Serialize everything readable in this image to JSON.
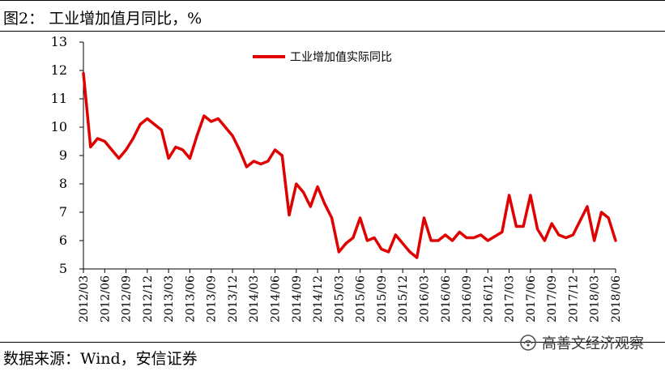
{
  "header": {
    "title": "图2：  工业增加值月同比，%"
  },
  "footer": {
    "source": "数据来源：Wind，安信证券"
  },
  "watermark": {
    "text": "高善文经济观察",
    "icon": "wechat-channel-icon"
  },
  "colors": {
    "series": "#e00000",
    "axis": "#000000"
  },
  "chart_data": {
    "type": "line",
    "title": "",
    "xlabel": "",
    "ylabel": "",
    "ylim": [
      5,
      13
    ],
    "yticks": [
      5,
      6,
      7,
      8,
      9,
      10,
      11,
      12,
      13
    ],
    "grid": false,
    "legend_position": "top-center",
    "x": [
      "2012/03",
      "2012/04",
      "2012/05",
      "2012/06",
      "2012/07",
      "2012/08",
      "2012/09",
      "2012/10",
      "2012/11",
      "2012/12",
      "2013/01",
      "2013/02",
      "2013/03",
      "2013/04",
      "2013/05",
      "2013/06",
      "2013/07",
      "2013/08",
      "2013/09",
      "2013/10",
      "2013/11",
      "2013/12",
      "2014/01",
      "2014/02",
      "2014/03",
      "2014/04",
      "2014/05",
      "2014/06",
      "2014/07",
      "2014/08",
      "2014/09",
      "2014/10",
      "2014/11",
      "2014/12",
      "2015/01",
      "2015/02",
      "2015/03",
      "2015/04",
      "2015/05",
      "2015/06",
      "2015/07",
      "2015/08",
      "2015/09",
      "2015/10",
      "2015/11",
      "2015/12",
      "2016/01",
      "2016/02",
      "2016/03",
      "2016/04",
      "2016/05",
      "2016/06",
      "2016/07",
      "2016/08",
      "2016/09",
      "2016/10",
      "2016/11",
      "2016/12",
      "2017/01",
      "2017/02",
      "2017/03",
      "2017/04",
      "2017/05",
      "2017/06",
      "2017/07",
      "2017/08",
      "2017/09",
      "2017/10",
      "2017/11",
      "2017/12",
      "2018/01",
      "2018/02",
      "2018/03",
      "2018/04",
      "2018/05",
      "2018/06"
    ],
    "xtick_labels": [
      "2012/03",
      "2012/06",
      "2012/09",
      "2012/12",
      "2013/03",
      "2013/06",
      "2013/09",
      "2013/12",
      "2014/03",
      "2014/06",
      "2014/09",
      "2014/12",
      "2015/03",
      "2015/06",
      "2015/09",
      "2015/12",
      "2016/03",
      "2016/06",
      "2016/09",
      "2016/12",
      "2017/03",
      "2017/06",
      "2017/09",
      "2017/12",
      "2018/03",
      "2018/06"
    ],
    "series": [
      {
        "name": "工业增加值实际同比",
        "values": [
          11.9,
          9.3,
          9.6,
          9.5,
          9.2,
          8.9,
          9.2,
          9.6,
          10.1,
          10.3,
          10.1,
          9.9,
          8.9,
          9.3,
          9.2,
          8.9,
          9.7,
          10.4,
          10.2,
          10.3,
          10.0,
          9.7,
          9.2,
          8.6,
          8.8,
          8.7,
          8.8,
          9.2,
          9.0,
          6.9,
          8.0,
          7.7,
          7.2,
          7.9,
          7.3,
          6.8,
          5.6,
          5.9,
          6.1,
          6.8,
          6.0,
          6.1,
          5.7,
          5.6,
          6.2,
          5.9,
          5.6,
          5.4,
          6.8,
          6.0,
          6.0,
          6.2,
          6.0,
          6.3,
          6.1,
          6.1,
          6.2,
          6.0,
          6.15,
          6.3,
          7.6,
          6.5,
          6.5,
          7.6,
          6.4,
          6.0,
          6.6,
          6.2,
          6.1,
          6.2,
          6.7,
          7.2,
          6.0,
          7.0,
          6.8,
          6.0
        ]
      }
    ]
  }
}
